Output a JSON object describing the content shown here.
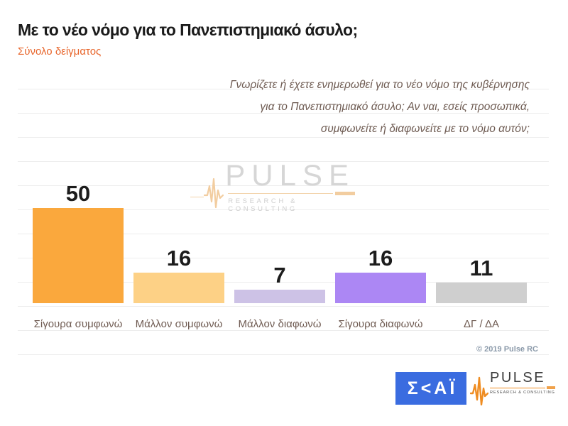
{
  "header": {
    "title": "Με το νέο νόμο για το Πανεπιστημιακό άσυλο;",
    "subtitle": "Σύνολο δείγματος"
  },
  "question": {
    "text": "Γνωρίζετε ή έχετε ενημερωθεί για το νέο νόμο της κυβέρνησης\nγια το Πανεπιστημιακό άσυλο; Αν ναι, εσείς προσωπικά,\nσυμφωνείτε ή διαφωνείτε με το νόμο αυτόν;"
  },
  "chart_data": {
    "type": "bar",
    "title": "Με το νέο νόμο για το Πανεπιστημιακό άσυλο;",
    "subtitle": "Σύνολο δείγματος",
    "categories": [
      "Σίγουρα συμφωνώ",
      "Μάλλον συμφωνώ",
      "Μάλλον διαφωνώ",
      "Σίγουρα διαφωνώ",
      "ΔΓ / ΔΑ"
    ],
    "values": [
      50,
      16,
      7,
      16,
      11
    ],
    "bar_colors": [
      "#faa83d",
      "#fdd186",
      "#cdc2e6",
      "#ac87f4",
      "#cfcfcf"
    ],
    "value_labels_shown": true,
    "xlabel": "",
    "ylabel": "",
    "ylim": [
      0,
      60
    ],
    "grid": true,
    "legend": "none"
  },
  "watermark": {
    "brand": "PULSE",
    "tagline": "RESEARCH & CONSULTING"
  },
  "footer": {
    "copyright": "© 2019 Pulse RC",
    "skai_text": "Σ<ΑΪ",
    "pulse_brand": "PULSE",
    "pulse_tagline": "RESEARCH & CONSULTING"
  },
  "colors": {
    "accent_orange": "#e8662c",
    "skai_blue": "#3a6ce0",
    "pulse_orange": "#ef8c20",
    "text_muted": "#6f5b52"
  }
}
